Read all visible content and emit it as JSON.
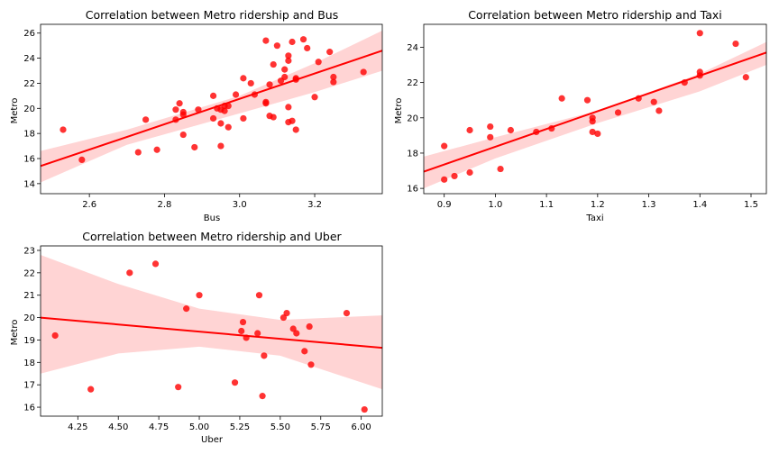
{
  "chart_data": [
    {
      "type": "scatter",
      "title": "Correlation between Metro ridership and Bus",
      "xlabel": "Bus",
      "ylabel": "Metro",
      "xlim": [
        2.47,
        3.38
      ],
      "ylim": [
        13.2,
        26.7
      ],
      "xticks": [
        2.6,
        2.8,
        3.0,
        3.2
      ],
      "yticks": [
        14,
        16,
        18,
        20,
        22,
        24,
        26
      ],
      "xtick_labels": [
        "2.6",
        "2.8",
        "3.0",
        "3.2"
      ],
      "ytick_labels": [
        "14",
        "16",
        "18",
        "20",
        "22",
        "24",
        "26"
      ],
      "regression": {
        "x": [
          2.47,
          3.38
        ],
        "y": [
          15.4,
          24.6
        ]
      },
      "ci": {
        "x": [
          2.47,
          2.7,
          3.0,
          3.2,
          3.38
        ],
        "upper": [
          16.6,
          18.3,
          21.0,
          23.6,
          26.2
        ],
        "lower": [
          14.1,
          17.1,
          19.6,
          21.3,
          23.0
        ]
      },
      "color": "#ff0000",
      "points": [
        [
          2.53,
          18.3
        ],
        [
          2.58,
          15.9
        ],
        [
          2.73,
          16.5
        ],
        [
          2.75,
          19.1
        ],
        [
          2.78,
          16.7
        ],
        [
          2.83,
          19.9
        ],
        [
          2.83,
          19.1
        ],
        [
          2.84,
          20.4
        ],
        [
          2.85,
          19.5
        ],
        [
          2.85,
          19.7
        ],
        [
          2.85,
          17.9
        ],
        [
          2.88,
          16.9
        ],
        [
          2.89,
          19.9
        ],
        [
          2.93,
          19.2
        ],
        [
          2.93,
          21.0
        ],
        [
          2.94,
          20.0
        ],
        [
          2.95,
          17.0
        ],
        [
          2.95,
          18.8
        ],
        [
          2.95,
          19.9
        ],
        [
          2.96,
          20.2
        ],
        [
          2.96,
          19.8
        ],
        [
          2.97,
          18.5
        ],
        [
          2.97,
          20.2
        ],
        [
          2.99,
          21.1
        ],
        [
          3.01,
          22.4
        ],
        [
          3.01,
          19.2
        ],
        [
          3.03,
          22.0
        ],
        [
          3.04,
          21.1
        ],
        [
          3.07,
          20.4
        ],
        [
          3.07,
          20.5
        ],
        [
          3.07,
          25.4
        ],
        [
          3.08,
          21.9
        ],
        [
          3.08,
          19.4
        ],
        [
          3.09,
          19.3
        ],
        [
          3.09,
          23.5
        ],
        [
          3.1,
          25.0
        ],
        [
          3.11,
          22.2
        ],
        [
          3.12,
          22.5
        ],
        [
          3.12,
          23.1
        ],
        [
          3.13,
          18.9
        ],
        [
          3.13,
          24.2
        ],
        [
          3.13,
          23.8
        ],
        [
          3.13,
          20.1
        ],
        [
          3.14,
          25.3
        ],
        [
          3.14,
          19.0
        ],
        [
          3.15,
          22.4
        ],
        [
          3.15,
          22.3
        ],
        [
          3.15,
          18.3
        ],
        [
          3.17,
          25.5
        ],
        [
          3.18,
          24.8
        ],
        [
          3.2,
          20.9
        ],
        [
          3.21,
          23.7
        ],
        [
          3.24,
          24.5
        ],
        [
          3.25,
          22.5
        ],
        [
          3.25,
          22.1
        ],
        [
          3.33,
          22.9
        ]
      ]
    },
    {
      "type": "scatter",
      "title": "Correlation between Metro ridership and Taxi",
      "xlabel": "Taxi",
      "ylabel": "Metro",
      "xlim": [
        0.86,
        1.53
      ],
      "ylim": [
        15.7,
        25.3
      ],
      "xticks": [
        0.9,
        1.0,
        1.1,
        1.2,
        1.3,
        1.4,
        1.5
      ],
      "yticks": [
        16,
        18,
        20,
        22,
        24
      ],
      "xtick_labels": [
        "0.9",
        "1.0",
        "1.1",
        "1.2",
        "1.3",
        "1.4",
        "1.5"
      ],
      "ytick_labels": [
        "16",
        "18",
        "20",
        "22",
        "24"
      ],
      "regression": {
        "x": [
          0.86,
          1.53
        ],
        "y": [
          16.95,
          23.7
        ]
      },
      "ci": {
        "x": [
          0.86,
          1.0,
          1.2,
          1.4,
          1.53
        ],
        "upper": [
          17.8,
          18.9,
          20.4,
          22.5,
          24.3
        ],
        "lower": [
          16.0,
          17.7,
          19.7,
          21.5,
          23.0
        ]
      },
      "color": "#ff0000",
      "points": [
        [
          0.9,
          18.4
        ],
        [
          0.9,
          16.5
        ],
        [
          0.92,
          16.7
        ],
        [
          0.95,
          19.3
        ],
        [
          0.95,
          16.9
        ],
        [
          0.99,
          19.5
        ],
        [
          0.99,
          18.9
        ],
        [
          1.01,
          17.1
        ],
        [
          1.03,
          19.3
        ],
        [
          1.08,
          19.2
        ],
        [
          1.11,
          19.4
        ],
        [
          1.13,
          21.1
        ],
        [
          1.18,
          21.0
        ],
        [
          1.19,
          20.0
        ],
        [
          1.19,
          19.8
        ],
        [
          1.19,
          19.2
        ],
        [
          1.2,
          19.1
        ],
        [
          1.24,
          20.3
        ],
        [
          1.28,
          21.1
        ],
        [
          1.31,
          20.9
        ],
        [
          1.32,
          20.4
        ],
        [
          1.37,
          22.0
        ],
        [
          1.4,
          22.6
        ],
        [
          1.4,
          22.4
        ],
        [
          1.4,
          24.8
        ],
        [
          1.47,
          24.2
        ],
        [
          1.49,
          22.3
        ]
      ]
    },
    {
      "type": "scatter",
      "title": "Correlation between Metro ridership and Uber",
      "xlabel": "Uber",
      "ylabel": "Metro",
      "xlim": [
        4.02,
        6.13
      ],
      "ylim": [
        15.6,
        23.2
      ],
      "xticks": [
        4.25,
        4.5,
        4.75,
        5.0,
        5.25,
        5.5,
        5.75,
        6.0
      ],
      "yticks": [
        16,
        17,
        18,
        19,
        20,
        21,
        22,
        23
      ],
      "xtick_labels": [
        "4.25",
        "4.50",
        "4.75",
        "5.00",
        "5.25",
        "5.50",
        "5.75",
        "6.00"
      ],
      "ytick_labels": [
        "16",
        "17",
        "18",
        "19",
        "20",
        "21",
        "22",
        "23"
      ],
      "regression": {
        "x": [
          4.02,
          6.13
        ],
        "y": [
          20.0,
          18.65
        ]
      },
      "ci": {
        "x": [
          4.02,
          4.5,
          5.0,
          5.5,
          6.13
        ],
        "upper": [
          22.8,
          21.5,
          20.4,
          19.9,
          20.1
        ],
        "lower": [
          17.5,
          18.4,
          18.7,
          18.3,
          16.8
        ]
      },
      "color": "#ff0000",
      "points": [
        [
          4.11,
          19.2
        ],
        [
          4.33,
          16.8
        ],
        [
          4.57,
          22.0
        ],
        [
          4.73,
          22.4
        ],
        [
          4.87,
          16.9
        ],
        [
          4.92,
          20.4
        ],
        [
          5.0,
          21.0
        ],
        [
          5.22,
          17.1
        ],
        [
          5.26,
          19.4
        ],
        [
          5.27,
          19.8
        ],
        [
          5.29,
          19.1
        ],
        [
          5.36,
          19.3
        ],
        [
          5.37,
          21.0
        ],
        [
          5.39,
          16.5
        ],
        [
          5.4,
          18.3
        ],
        [
          5.52,
          20.0
        ],
        [
          5.54,
          20.2
        ],
        [
          5.58,
          19.5
        ],
        [
          5.6,
          19.3
        ],
        [
          5.65,
          18.5
        ],
        [
          5.68,
          19.6
        ],
        [
          5.69,
          17.9
        ],
        [
          5.91,
          20.2
        ],
        [
          6.02,
          15.9
        ]
      ]
    }
  ]
}
